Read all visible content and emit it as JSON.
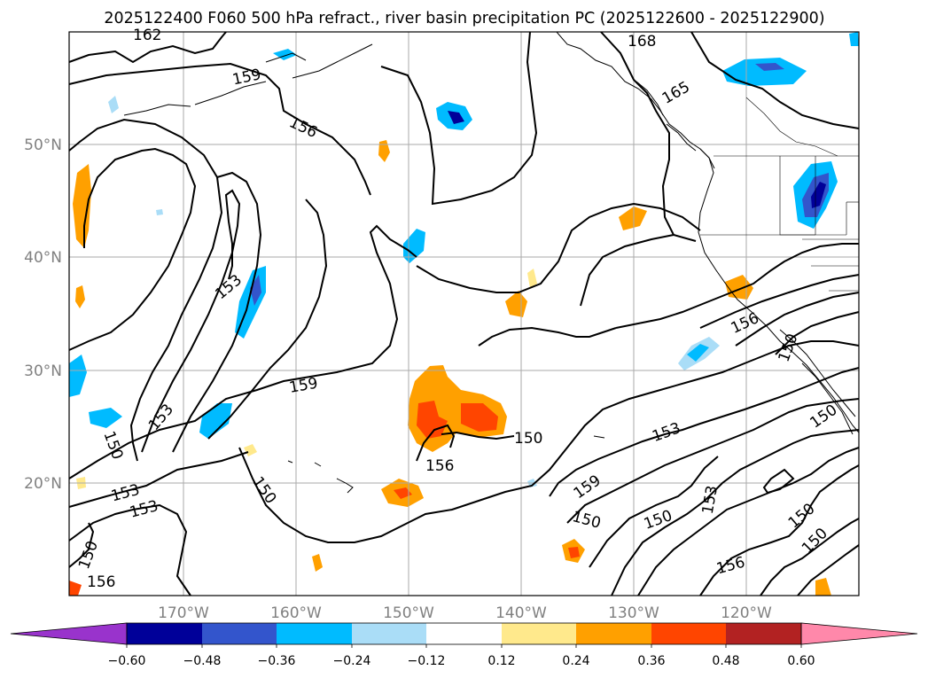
{
  "title": "2025122400 F060 500 hPa refract., river basin precipitation PC (2025122600 - 2025122900)",
  "lat_labels": [
    "50°N",
    "40°N",
    "30°N",
    "20°N"
  ],
  "lon_labels": [
    "170°W",
    "160°W",
    "150°W",
    "140°W",
    "130°W",
    "120°W"
  ],
  "colorbar": {
    "tick_labels": [
      "−0.60",
      "−0.48",
      "−0.36",
      "−0.24",
      "−0.12",
      "0.12",
      "0.24",
      "0.36",
      "0.48",
      "0.60"
    ],
    "colors": [
      "#9933cc",
      "#000099",
      "#3355cc",
      "#00bbff",
      "#aaddf7",
      "#ffffff",
      "#ffe98c",
      "#ffa000",
      "#ff4500",
      "#b22222",
      "#ff88aa"
    ]
  },
  "contour_labels": [
    {
      "id": "c162",
      "text": "162"
    },
    {
      "id": "c168",
      "text": "168"
    },
    {
      "id": "c159a",
      "text": "159"
    },
    {
      "id": "c165",
      "text": "165"
    },
    {
      "id": "c156a",
      "text": "156"
    },
    {
      "id": "c153a",
      "text": "153"
    },
    {
      "id": "c156b",
      "text": "156"
    },
    {
      "id": "c150a",
      "text": "150"
    },
    {
      "id": "c159b",
      "text": "159"
    },
    {
      "id": "c153b",
      "text": "153"
    },
    {
      "id": "c150b",
      "text": "150"
    },
    {
      "id": "c153c",
      "text": "153"
    },
    {
      "id": "c153d",
      "text": "153"
    },
    {
      "id": "c150c",
      "text": "150"
    },
    {
      "id": "c150d",
      "text": "150"
    },
    {
      "id": "c150e",
      "text": "150"
    },
    {
      "id": "c156c",
      "text": "156"
    },
    {
      "id": "c159c",
      "text": "159"
    },
    {
      "id": "c150f",
      "text": "150"
    },
    {
      "id": "c153e",
      "text": "153"
    },
    {
      "id": "c153f",
      "text": "153"
    },
    {
      "id": "c150g",
      "text": "150"
    },
    {
      "id": "c156d",
      "text": "156"
    },
    {
      "id": "c150h",
      "text": "150"
    },
    {
      "id": "c156e",
      "text": "156"
    },
    {
      "id": "c150i",
      "text": "150"
    }
  ]
}
